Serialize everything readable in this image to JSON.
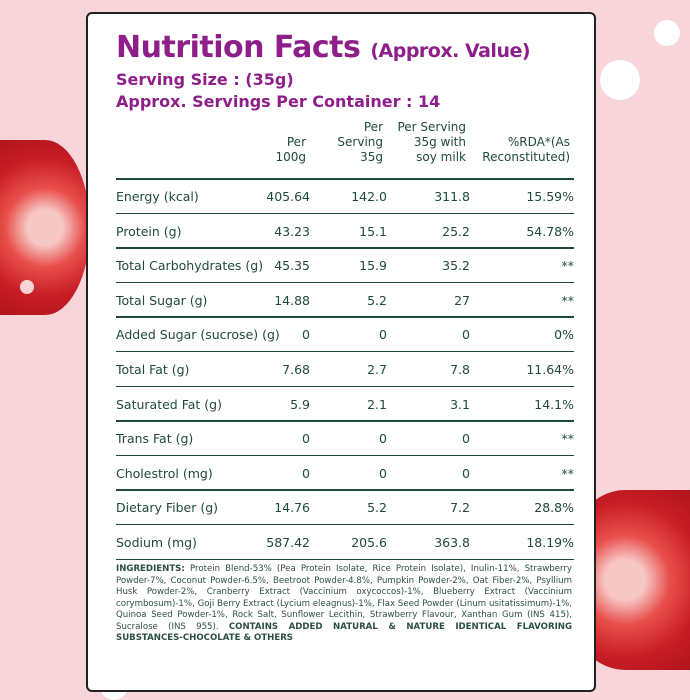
{
  "title": "Nutrition Facts",
  "title_suffix": "(Approx. Value)",
  "serving_size": "Serving Size :  (35g)",
  "servings_per_container": "Approx. Servings Per Container : 14",
  "columns": [
    "Per\n100g",
    "Per\nServing\n35g",
    "Per Serving\n35g with\nsoy milk",
    "%RDA*(As\nReconstituted)"
  ],
  "rows": [
    {
      "label": "Energy (kcal)",
      "v": [
        "405.64",
        "142.0",
        "311.8",
        "15.59%"
      ]
    },
    {
      "label": "Protein (g)",
      "v": [
        "43.23",
        "15.1",
        "25.2",
        "54.78%"
      ]
    },
    {
      "label": "Total Carbohydrates (g)",
      "v": [
        "45.35",
        "15.9",
        "35.2",
        "**"
      ]
    },
    {
      "label": "Total Sugar (g)",
      "v": [
        "14.88",
        "5.2",
        "27",
        "**"
      ]
    },
    {
      "label": "Added Sugar (sucrose) (g)",
      "v": [
        "0",
        "0",
        "0",
        "0%"
      ]
    },
    {
      "label": "Total Fat (g)",
      "v": [
        "7.68",
        "2.7",
        "7.8",
        "11.64%"
      ]
    },
    {
      "label": "Saturated Fat (g)",
      "v": [
        "5.9",
        "2.1",
        "3.1",
        "14.1%"
      ]
    },
    {
      "label": "Trans Fat (g)",
      "v": [
        "0",
        "0",
        "0",
        "**"
      ]
    },
    {
      "label": "Cholestrol (mg)",
      "v": [
        "0",
        "0",
        "0",
        "**"
      ]
    },
    {
      "label": "Dietary Fiber (g)",
      "v": [
        "14.76",
        "5.2",
        "7.2",
        "28.8%"
      ]
    },
    {
      "label": "Sodium (mg)",
      "v": [
        "587.42",
        "205.6",
        "363.8",
        "18.19%"
      ]
    }
  ],
  "ingredients_label": "INGREDIENTS:",
  "ingredients": "Protein Blend-53% (Pea Protein Isolate, Rice Protein Isolate), Inulin-11%, Strawberry Powder-7%, Coconut Powder-6.5%, Beetroot Powder-4.8%, Pumpkin Powder-2%, Oat Fiber-2%, Psyllium Husk Powder-2%, Cranberry Extract (Vaccinium oxycoccos)-1%, Blueberry Extract (Vaccinium corymbosum)-1%, Goji Berry Extract (Lycium eleagnus)-1%, Flax Seed Powder (Linum usitatissimum)-1%, Quinoa Seed Powder-1%, Rock Salt, Sunflower Lecithin, Strawberry Flavour, Xanthan Gum (INS 415), Sucralose (INS 955).",
  "ingredients_note": "CONTAINS ADDED NATURAL & NATURE IDENTICAL FLAVORING SUBSTANCES-CHOCOLATE & OTHERS"
}
